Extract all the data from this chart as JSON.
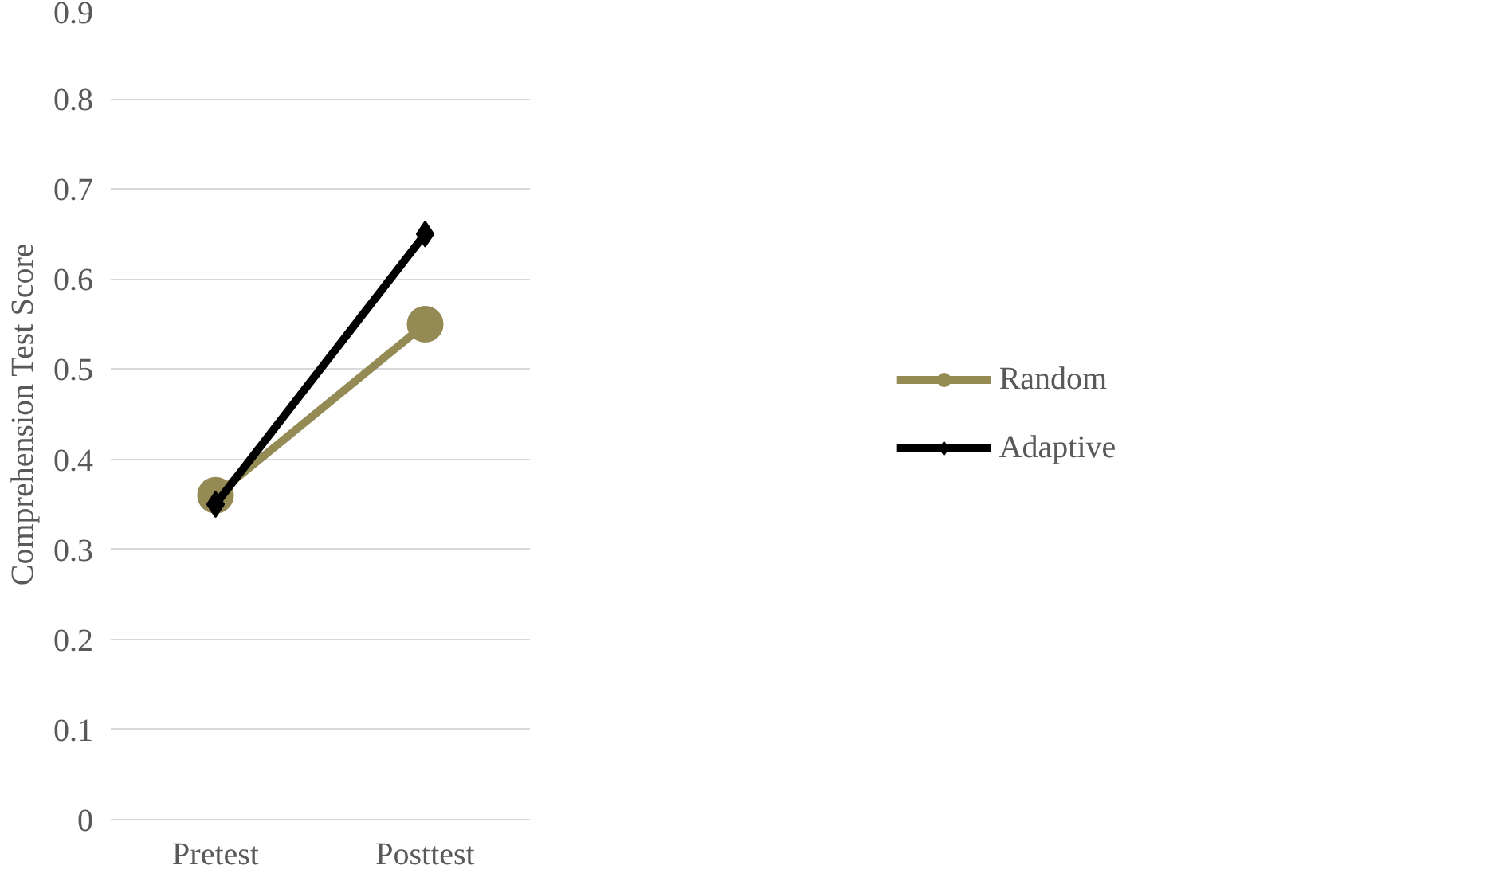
{
  "chart_data": {
    "type": "line",
    "ylabel": "Comprehension Test Score",
    "categories": [
      "Pretest",
      "Posttest"
    ],
    "series": [
      {
        "name": "Random",
        "color": "#948a54",
        "values": [
          0.36,
          0.55
        ],
        "marker": "circle"
      },
      {
        "name": "Adaptive",
        "color": "#000000",
        "values": [
          0.35,
          0.65
        ],
        "marker": "diamond"
      }
    ],
    "ylim": [
      0,
      0.9
    ],
    "yticks": [
      {
        "value": 0,
        "label": "0"
      },
      0.1,
      0.2,
      0.3,
      0.4,
      0.5,
      0.6,
      0.7,
      0.8,
      0.9
    ],
    "grid": "y",
    "legend": "right"
  }
}
